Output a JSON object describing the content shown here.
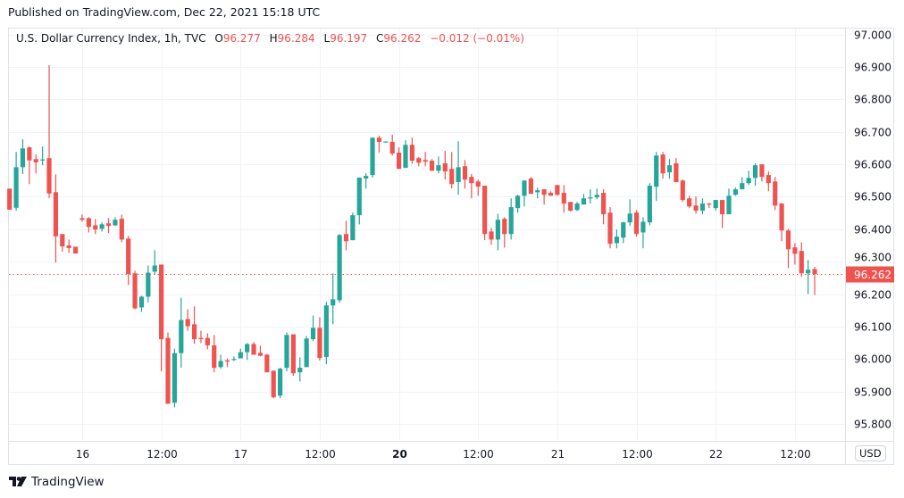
{
  "header": {
    "published": "Published on TradingView.com, Dec 22, 2021 15:18 UTC"
  },
  "legend": {
    "symbol": "U.S. Dollar Currency Index, 1h, TVC",
    "o_label": "O",
    "o": "96.277",
    "h_label": "H",
    "h": "96.284",
    "l_label": "L",
    "l": "96.197",
    "c_label": "C",
    "c": "96.262",
    "change": "−0.012 (−0.01%)"
  },
  "currency_button": "USD",
  "footer": {
    "brand": "TradingView"
  },
  "colors": {
    "up": "#26a69a",
    "down": "#ef5350",
    "grid": "#f0f3fa",
    "text": "#131722"
  },
  "chart_data": {
    "type": "candlestick",
    "title": "U.S. Dollar Currency Index, 1h, TVC",
    "ylim": [
      95.74,
      97.02
    ],
    "grid": true,
    "y_ticks": [
      "97.000",
      "96.900",
      "96.800",
      "96.700",
      "96.600",
      "96.500",
      "96.400",
      "96.300",
      "96.200",
      "96.100",
      "96.000",
      "95.900",
      "95.800"
    ],
    "x_ticks": [
      {
        "label": "16",
        "candle_index": 11
      },
      {
        "label": "12:00",
        "candle_index": 23
      },
      {
        "label": "17",
        "candle_index": 35
      },
      {
        "label": "12:00",
        "candle_index": 47
      },
      {
        "label": "20",
        "candle_index": 59,
        "bold": true
      },
      {
        "label": "12:00",
        "candle_index": 71
      },
      {
        "label": "21",
        "candle_index": 83
      },
      {
        "label": "12:00",
        "candle_index": 95
      },
      {
        "label": "22",
        "candle_index": 107
      },
      {
        "label": "12:00",
        "candle_index": 119
      }
    ],
    "last_price": 96.262,
    "last_price_label": "96.262",
    "ohlc_order": [
      "open",
      "high",
      "low",
      "close"
    ],
    "candles": [
      [
        96.525,
        96.525,
        96.46,
        96.46
      ],
      [
        96.466,
        96.638,
        96.457,
        96.591
      ],
      [
        96.591,
        96.677,
        96.57,
        96.649
      ],
      [
        96.652,
        96.655,
        96.539,
        96.612
      ],
      [
        96.616,
        96.63,
        96.572,
        96.606
      ],
      [
        96.613,
        96.655,
        96.597,
        96.615
      ],
      [
        96.619,
        96.905,
        96.496,
        96.51
      ],
      [
        96.514,
        96.569,
        96.297,
        96.378
      ],
      [
        96.385,
        96.385,
        96.331,
        96.347
      ],
      [
        96.35,
        96.368,
        96.327,
        96.342
      ],
      [
        96.346,
        96.346,
        96.325,
        96.325
      ],
      [
        96.434,
        96.445,
        96.423,
        96.429
      ],
      [
        96.434,
        96.437,
        96.39,
        96.407
      ],
      [
        96.412,
        96.431,
        96.385,
        96.399
      ],
      [
        96.401,
        96.421,
        96.393,
        96.415
      ],
      [
        96.418,
        96.434,
        96.388,
        96.41
      ],
      [
        96.412,
        96.437,
        96.41,
        96.429
      ],
      [
        96.432,
        96.445,
        96.36,
        96.368
      ],
      [
        96.371,
        96.379,
        96.228,
        96.262
      ],
      [
        96.264,
        96.272,
        96.153,
        96.156
      ],
      [
        96.159,
        96.195,
        96.145,
        96.192
      ],
      [
        96.192,
        96.288,
        96.175,
        96.266
      ],
      [
        96.269,
        96.335,
        96.261,
        96.288
      ],
      [
        96.291,
        96.291,
        95.962,
        96.061
      ],
      [
        96.065,
        96.082,
        95.862,
        95.862
      ],
      [
        95.865,
        96.032,
        95.851,
        96.018
      ],
      [
        96.018,
        96.189,
        95.973,
        96.12
      ],
      [
        96.123,
        96.153,
        96.087,
        96.101
      ],
      [
        96.107,
        96.162,
        96.047,
        96.061
      ],
      [
        96.065,
        96.087,
        96.049,
        96.061
      ],
      [
        96.065,
        96.079,
        96.03,
        96.042
      ],
      [
        96.042,
        96.074,
        95.959,
        95.973
      ],
      [
        95.975,
        96.013,
        95.97,
        95.994
      ],
      [
        95.996,
        96.002,
        95.975,
        95.992
      ],
      [
        95.997,
        96.008,
        95.994,
        96.0
      ],
      [
        96.002,
        96.032,
        96.002,
        96.021
      ],
      [
        96.021,
        96.049,
        95.997,
        96.046
      ],
      [
        96.046,
        96.052,
        96.013,
        96.013
      ],
      [
        96.019,
        96.041,
        96.008,
        96.01
      ],
      [
        96.013,
        96.016,
        95.959,
        95.959
      ],
      [
        95.964,
        95.964,
        95.879,
        95.882
      ],
      [
        95.887,
        95.973,
        95.879,
        95.97
      ],
      [
        95.973,
        96.082,
        95.962,
        96.074
      ],
      [
        96.076,
        96.076,
        95.948,
        95.956
      ],
      [
        95.959,
        96.005,
        95.931,
        95.973
      ],
      [
        95.975,
        96.071,
        95.975,
        96.063
      ],
      [
        96.061,
        96.134,
        96.055,
        96.096
      ],
      [
        96.096,
        96.129,
        95.995,
        96.003
      ],
      [
        96.006,
        96.176,
        95.984,
        96.165
      ],
      [
        96.165,
        96.264,
        96.107,
        96.184
      ],
      [
        96.181,
        96.385,
        96.173,
        96.382
      ],
      [
        96.385,
        96.426,
        96.335,
        96.363
      ],
      [
        96.366,
        96.451,
        96.366,
        96.443
      ],
      [
        96.443,
        96.559,
        96.415,
        96.559
      ],
      [
        96.556,
        96.572,
        96.525,
        96.564
      ],
      [
        96.567,
        96.682,
        96.559,
        96.682
      ],
      [
        96.682,
        96.688,
        96.636,
        96.669
      ],
      [
        96.669,
        96.671,
        96.668,
        96.67
      ],
      [
        96.669,
        96.691,
        96.627,
        96.633
      ],
      [
        96.636,
        96.652,
        96.586,
        96.586
      ],
      [
        96.589,
        96.674,
        96.589,
        96.66
      ],
      [
        96.66,
        96.682,
        96.602,
        96.611
      ],
      [
        96.619,
        96.622,
        96.594,
        96.605
      ],
      [
        96.613,
        96.638,
        96.594,
        96.608
      ],
      [
        96.611,
        96.616,
        96.58,
        96.58
      ],
      [
        96.58,
        96.624,
        96.572,
        96.597
      ],
      [
        96.603,
        96.641,
        96.553,
        96.578
      ],
      [
        96.586,
        96.638,
        96.525,
        96.539
      ],
      [
        96.545,
        96.671,
        96.506,
        96.591
      ],
      [
        96.594,
        96.613,
        96.525,
        96.553
      ],
      [
        96.561,
        96.57,
        96.495,
        96.542
      ],
      [
        96.547,
        96.553,
        96.503,
        96.531
      ],
      [
        96.534,
        96.534,
        96.366,
        96.385
      ],
      [
        96.393,
        96.404,
        96.352,
        96.368
      ],
      [
        96.368,
        96.448,
        96.335,
        96.429
      ],
      [
        96.432,
        96.437,
        96.343,
        96.385
      ],
      [
        96.385,
        96.495,
        96.368,
        96.468
      ],
      [
        96.465,
        96.506,
        96.451,
        96.503
      ],
      [
        96.503,
        96.55,
        96.47,
        96.55
      ],
      [
        96.556,
        96.561,
        96.509,
        96.509
      ],
      [
        96.514,
        96.528,
        96.495,
        96.52
      ],
      [
        96.523,
        96.523,
        96.476,
        96.506
      ],
      [
        96.512,
        96.517,
        96.503,
        96.503
      ],
      [
        96.536,
        96.536,
        96.503,
        96.506
      ],
      [
        96.512,
        96.536,
        96.451,
        96.479
      ],
      [
        96.484,
        96.484,
        96.454,
        96.457
      ],
      [
        96.459,
        96.484,
        96.456,
        96.479
      ],
      [
        96.476,
        96.509,
        96.476,
        96.495
      ],
      [
        96.497,
        96.523,
        96.479,
        96.498
      ],
      [
        96.498,
        96.525,
        96.492,
        96.506
      ],
      [
        96.512,
        96.523,
        96.415,
        96.446
      ],
      [
        96.451,
        96.468,
        96.341,
        96.355
      ],
      [
        96.357,
        96.399,
        96.341,
        96.377
      ],
      [
        96.374,
        96.423,
        96.357,
        96.421
      ],
      [
        96.421,
        96.492,
        96.41,
        96.448
      ],
      [
        96.451,
        96.459,
        96.377,
        96.385
      ],
      [
        96.39,
        96.437,
        96.341,
        96.423
      ],
      [
        96.421,
        96.542,
        96.412,
        96.534
      ],
      [
        96.531,
        96.638,
        96.487,
        96.627
      ],
      [
        96.63,
        96.638,
        96.556,
        96.572
      ],
      [
        96.575,
        96.616,
        96.556,
        96.597
      ],
      [
        96.603,
        96.619,
        96.545,
        96.545
      ],
      [
        96.55,
        96.553,
        96.484,
        96.49
      ],
      [
        96.495,
        96.503,
        96.465,
        96.47
      ],
      [
        96.473,
        96.501,
        96.448,
        96.457
      ],
      [
        96.457,
        96.495,
        96.446,
        96.479
      ],
      [
        96.479,
        96.481,
        96.465,
        96.477
      ],
      [
        96.465,
        96.49,
        96.457,
        96.49
      ],
      [
        96.49,
        96.49,
        96.404,
        96.446
      ],
      [
        96.446,
        96.525,
        96.446,
        96.503
      ],
      [
        96.506,
        96.528,
        96.503,
        96.523
      ],
      [
        96.523,
        96.561,
        96.523,
        96.542
      ],
      [
        96.542,
        96.58,
        96.536,
        96.558
      ],
      [
        96.558,
        96.603,
        96.534,
        96.597
      ],
      [
        96.6,
        96.6,
        96.547,
        96.561
      ],
      [
        96.567,
        96.578,
        96.517,
        96.542
      ],
      [
        96.547,
        96.561,
        96.459,
        96.473
      ],
      [
        96.479,
        96.481,
        96.363,
        96.396
      ],
      [
        96.396,
        96.401,
        96.28,
        96.338
      ],
      [
        96.344,
        96.357,
        96.291,
        96.324
      ],
      [
        96.333,
        96.36,
        96.253,
        96.264
      ],
      [
        96.264,
        96.305,
        96.2,
        96.275
      ],
      [
        96.277,
        96.284,
        96.197,
        96.262
      ]
    ]
  }
}
